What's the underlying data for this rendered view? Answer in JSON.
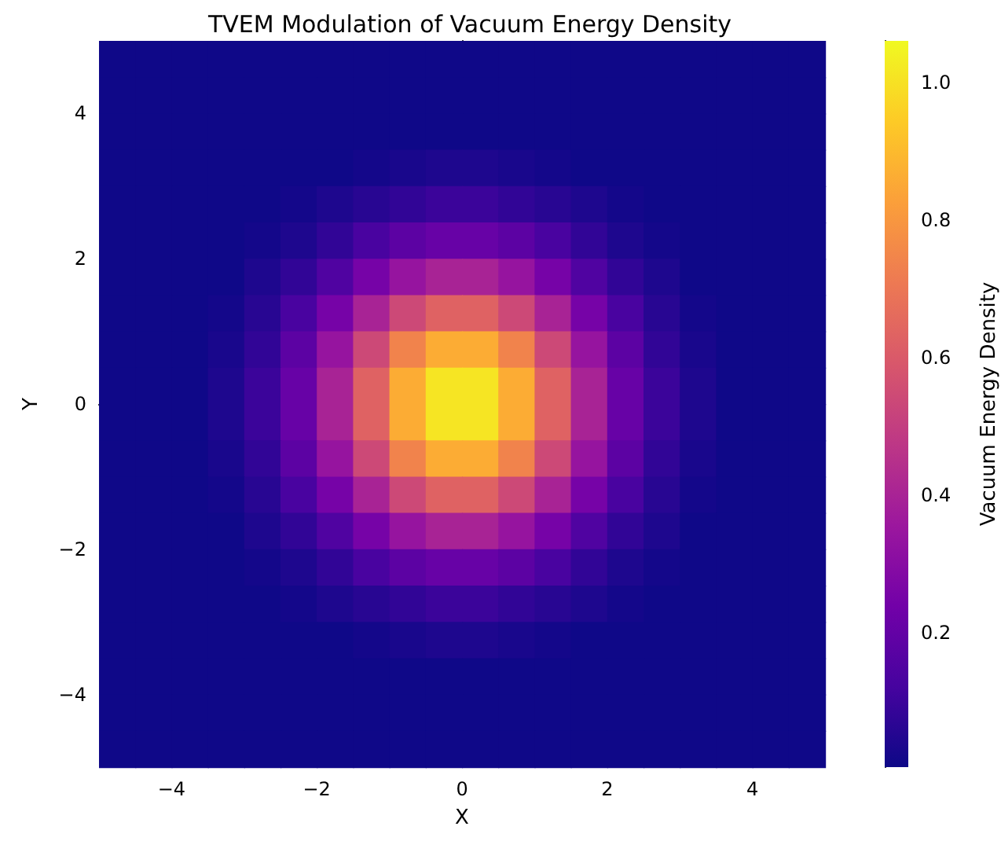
{
  "chart_data": {
    "type": "heatmap",
    "title": "TVEM Modulation of Vacuum Energy Density",
    "xlabel": "X",
    "ylabel": "Y",
    "clabel": "Vacuum Energy Density",
    "x": [
      -4.75,
      -4.25,
      -3.75,
      -3.25,
      -2.75,
      -2.25,
      -1.75,
      -1.25,
      -0.75,
      -0.25,
      0.25,
      0.75,
      1.25,
      1.75,
      2.25,
      2.75,
      3.25,
      3.75,
      4.25,
      4.75
    ],
    "y": [
      4.75,
      4.25,
      3.75,
      3.25,
      2.75,
      2.25,
      1.75,
      1.25,
      0.75,
      0.25,
      -0.25,
      -0.75,
      -1.25,
      -1.75,
      -2.25,
      -2.75,
      -3.25,
      -3.75,
      -4.25,
      -4.75
    ],
    "xlim": [
      -5,
      5
    ],
    "ylim": [
      -5,
      5
    ],
    "xticks": [
      {
        "value": -4,
        "label": "−4"
      },
      {
        "value": -2,
        "label": "−2"
      },
      0,
      2,
      4
    ],
    "yticks": [
      {
        "value": -4,
        "label": "−4"
      },
      {
        "value": -2,
        "label": "−2"
      },
      0,
      2,
      4
    ],
    "clim": [
      0.005,
      1.06
    ],
    "cticks": [
      0.2,
      0.4,
      0.6,
      0.8,
      {
        "value": 1,
        "label": "1.0"
      }
    ],
    "cells": [
      [
        0.01,
        0.01,
        0.01,
        0.01,
        0.01,
        0.01,
        0.01,
        0.01,
        0.01,
        0.01,
        0.01,
        0.01,
        0.01,
        0.01,
        0.01,
        0.01,
        0.01,
        0.01,
        0.01,
        0.01
      ],
      [
        0.01,
        0.01,
        0.01,
        0.01,
        0.01,
        0.01,
        0.01,
        0.01,
        0.01,
        0.01,
        0.01,
        0.01,
        0.01,
        0.01,
        0.01,
        0.01,
        0.01,
        0.01,
        0.01,
        0.01
      ],
      [
        0.01,
        0.01,
        0.01,
        0.01,
        0.01,
        0.01,
        0.01,
        0.01,
        0.01,
        0.01,
        0.01,
        0.01,
        0.01,
        0.01,
        0.01,
        0.01,
        0.01,
        0.01,
        0.01,
        0.01
      ],
      [
        0.01,
        0.01,
        0.01,
        0.01,
        0.01,
        0.01,
        0.01,
        0.02,
        0.03,
        0.04,
        0.04,
        0.03,
        0.02,
        0.01,
        0.01,
        0.01,
        0.01,
        0.01,
        0.01,
        0.01
      ],
      [
        0.01,
        0.01,
        0.01,
        0.01,
        0.01,
        0.02,
        0.04,
        0.06,
        0.08,
        0.1,
        0.1,
        0.08,
        0.06,
        0.04,
        0.02,
        0.01,
        0.01,
        0.01,
        0.01,
        0.01
      ],
      [
        0.01,
        0.01,
        0.01,
        0.01,
        0.02,
        0.04,
        0.08,
        0.13,
        0.18,
        0.21,
        0.21,
        0.18,
        0.13,
        0.08,
        0.04,
        0.02,
        0.01,
        0.01,
        0.01,
        0.01
      ],
      [
        0.01,
        0.01,
        0.01,
        0.01,
        0.04,
        0.08,
        0.15,
        0.25,
        0.34,
        0.4,
        0.4,
        0.34,
        0.25,
        0.15,
        0.08,
        0.04,
        0.01,
        0.01,
        0.01,
        0.01
      ],
      [
        0.01,
        0.01,
        0.01,
        0.02,
        0.06,
        0.13,
        0.25,
        0.4,
        0.54,
        0.63,
        0.63,
        0.54,
        0.4,
        0.25,
        0.13,
        0.06,
        0.02,
        0.01,
        0.01,
        0.01
      ],
      [
        0.01,
        0.01,
        0.01,
        0.03,
        0.08,
        0.18,
        0.34,
        0.54,
        0.74,
        0.86,
        0.86,
        0.74,
        0.54,
        0.34,
        0.18,
        0.08,
        0.03,
        0.01,
        0.01,
        0.01
      ],
      [
        0.01,
        0.01,
        0.01,
        0.04,
        0.1,
        0.21,
        0.4,
        0.63,
        0.86,
        1.01,
        1.01,
        0.86,
        0.63,
        0.4,
        0.21,
        0.1,
        0.04,
        0.01,
        0.01,
        0.01
      ],
      [
        0.01,
        0.01,
        0.01,
        0.04,
        0.1,
        0.21,
        0.4,
        0.63,
        0.86,
        1.01,
        1.01,
        0.86,
        0.63,
        0.4,
        0.21,
        0.1,
        0.04,
        0.01,
        0.01,
        0.01
      ],
      [
        0.01,
        0.01,
        0.01,
        0.03,
        0.08,
        0.18,
        0.34,
        0.54,
        0.74,
        0.86,
        0.86,
        0.74,
        0.54,
        0.34,
        0.18,
        0.08,
        0.03,
        0.01,
        0.01,
        0.01
      ],
      [
        0.01,
        0.01,
        0.01,
        0.02,
        0.06,
        0.13,
        0.25,
        0.4,
        0.54,
        0.63,
        0.63,
        0.54,
        0.4,
        0.25,
        0.13,
        0.06,
        0.02,
        0.01,
        0.01,
        0.01
      ],
      [
        0.01,
        0.01,
        0.01,
        0.01,
        0.04,
        0.08,
        0.15,
        0.25,
        0.34,
        0.4,
        0.4,
        0.34,
        0.25,
        0.15,
        0.08,
        0.04,
        0.01,
        0.01,
        0.01,
        0.01
      ],
      [
        0.01,
        0.01,
        0.01,
        0.01,
        0.02,
        0.04,
        0.08,
        0.13,
        0.18,
        0.21,
        0.21,
        0.18,
        0.13,
        0.08,
        0.04,
        0.02,
        0.01,
        0.01,
        0.01,
        0.01
      ],
      [
        0.01,
        0.01,
        0.01,
        0.01,
        0.01,
        0.02,
        0.04,
        0.06,
        0.08,
        0.1,
        0.1,
        0.08,
        0.06,
        0.04,
        0.02,
        0.01,
        0.01,
        0.01,
        0.01,
        0.01
      ],
      [
        0.01,
        0.01,
        0.01,
        0.01,
        0.01,
        0.01,
        0.01,
        0.02,
        0.03,
        0.04,
        0.04,
        0.03,
        0.02,
        0.01,
        0.01,
        0.01,
        0.01,
        0.01,
        0.01,
        0.01
      ],
      [
        0.01,
        0.01,
        0.01,
        0.01,
        0.01,
        0.01,
        0.01,
        0.01,
        0.01,
        0.01,
        0.01,
        0.01,
        0.01,
        0.01,
        0.01,
        0.01,
        0.01,
        0.01,
        0.01,
        0.01
      ],
      [
        0.01,
        0.01,
        0.01,
        0.01,
        0.01,
        0.01,
        0.01,
        0.01,
        0.01,
        0.01,
        0.01,
        0.01,
        0.01,
        0.01,
        0.01,
        0.01,
        0.01,
        0.01,
        0.01,
        0.01
      ],
      [
        0.01,
        0.01,
        0.01,
        0.01,
        0.01,
        0.01,
        0.01,
        0.01,
        0.01,
        0.01,
        0.01,
        0.01,
        0.01,
        0.01,
        0.01,
        0.01,
        0.01,
        0.01,
        0.01,
        0.01
      ]
    ]
  }
}
